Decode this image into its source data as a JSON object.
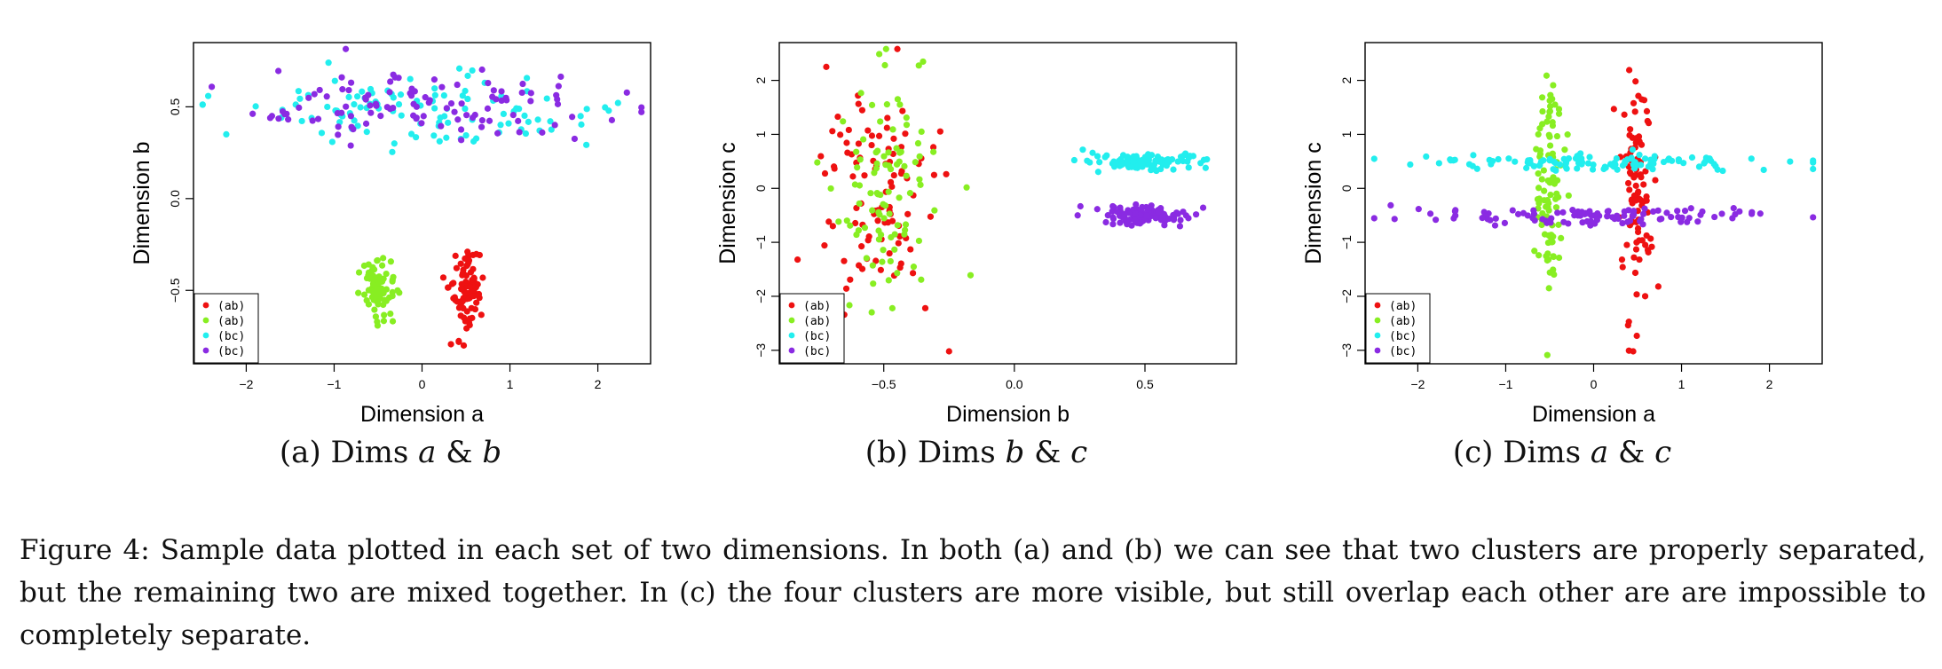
{
  "chart_data": [
    {
      "type": "scatter",
      "id": "a",
      "title": "",
      "xlabel": "Dimension a",
      "ylabel": "Dimension b",
      "xlim": [
        -2.6,
        2.6
      ],
      "ylim": [
        -0.9,
        0.85
      ],
      "xticks": [
        -2,
        -1,
        0,
        1,
        2
      ],
      "xtick_labels": [
        "−2",
        "−1",
        "0",
        "1",
        "2"
      ],
      "yticks": [
        -0.5,
        0.0,
        0.5
      ],
      "ytick_labels": [
        "−0.5",
        "0.0",
        "0.5"
      ],
      "legend_position": "bottom-left",
      "grid": false,
      "series": [
        {
          "name": "(ab)",
          "color": "#ee1111",
          "cluster": {
            "cx": 0.5,
            "cy": -0.52,
            "sx": 0.09,
            "sy": 0.12,
            "n": 90,
            "seed": 11
          }
        },
        {
          "name": "(ab)",
          "color": "#88ee22",
          "cluster": {
            "cx": -0.5,
            "cy": -0.48,
            "sx": 0.09,
            "sy": 0.08,
            "n": 80,
            "seed": 12
          }
        },
        {
          "name": "(bc)",
          "color": "#22eeee",
          "cluster": {
            "cx": 0.0,
            "cy": 0.49,
            "sx": 1.0,
            "sy": 0.1,
            "n": 110,
            "seed": 13
          }
        },
        {
          "name": "(bc)",
          "color": "#8a2be2",
          "cluster": {
            "cx": 0.0,
            "cy": 0.5,
            "sx": 1.05,
            "sy": 0.1,
            "n": 110,
            "seed": 14
          }
        }
      ]
    },
    {
      "type": "scatter",
      "id": "b",
      "title": "",
      "xlabel": "Dimension b",
      "ylabel": "Dimension c",
      "xlim": [
        -0.9,
        0.85
      ],
      "ylim": [
        -3.25,
        2.7
      ],
      "xticks": [
        -0.5,
        0.0,
        0.5
      ],
      "xtick_labels": [
        "−0.5",
        "0.0",
        "0.5"
      ],
      "yticks": [
        -3,
        -2,
        -1,
        0,
        1,
        2
      ],
      "ytick_labels": [
        "−3",
        "−2",
        "−1",
        "0",
        "1",
        "2"
      ],
      "legend_position": "bottom-left",
      "grid": false,
      "series": [
        {
          "name": "(ab)",
          "color": "#ee1111",
          "cluster": {
            "cx": -0.5,
            "cy": 0.0,
            "sx": 0.11,
            "sy": 1.0,
            "n": 95,
            "seed": 21
          }
        },
        {
          "name": "(ab)",
          "color": "#88ee22",
          "cluster": {
            "cx": -0.48,
            "cy": 0.0,
            "sx": 0.1,
            "sy": 1.0,
            "n": 95,
            "seed": 22
          }
        },
        {
          "name": "(bc)",
          "color": "#22eeee",
          "cluster": {
            "cx": 0.5,
            "cy": 0.5,
            "sx": 0.09,
            "sy": 0.08,
            "n": 110,
            "seed": 23
          }
        },
        {
          "name": "(bc)",
          "color": "#8a2be2",
          "cluster": {
            "cx": 0.5,
            "cy": -0.5,
            "sx": 0.09,
            "sy": 0.09,
            "n": 110,
            "seed": 24
          }
        }
      ],
      "extra_points": [
        {
          "x": -0.25,
          "y": -3.02,
          "color": "#ee1111"
        },
        {
          "x": -0.83,
          "y": -1.32,
          "color": "#ee1111"
        },
        {
          "x": -0.72,
          "y": 2.25,
          "color": "#ee1111"
        }
      ]
    },
    {
      "type": "scatter",
      "id": "c",
      "title": "",
      "xlabel": "Dimension a",
      "ylabel": "Dimension c",
      "xlim": [
        -2.6,
        2.6
      ],
      "ylim": [
        -3.25,
        2.7
      ],
      "xticks": [
        -2,
        -1,
        0,
        1,
        2
      ],
      "xtick_labels": [
        "−2",
        "−1",
        "0",
        "1",
        "2"
      ],
      "yticks": [
        -3,
        -2,
        -1,
        0,
        1,
        2
      ],
      "ytick_labels": [
        "−3",
        "−2",
        "−1",
        "0",
        "1",
        "2"
      ],
      "legend_position": "bottom-left",
      "grid": false,
      "series": [
        {
          "name": "(ab)",
          "color": "#ee1111",
          "cluster": {
            "cx": 0.5,
            "cy": 0.0,
            "sx": 0.09,
            "sy": 1.0,
            "n": 95,
            "seed": 31
          }
        },
        {
          "name": "(ab)",
          "color": "#88ee22",
          "cluster": {
            "cx": -0.5,
            "cy": 0.0,
            "sx": 0.09,
            "sy": 1.0,
            "n": 95,
            "seed": 32
          }
        },
        {
          "name": "(bc)",
          "color": "#22eeee",
          "cluster": {
            "cx": 0.0,
            "cy": 0.48,
            "sx": 1.0,
            "sy": 0.08,
            "n": 110,
            "seed": 33
          }
        },
        {
          "name": "(bc)",
          "color": "#8a2be2",
          "cluster": {
            "cx": 0.0,
            "cy": -0.52,
            "sx": 1.0,
            "sy": 0.09,
            "n": 110,
            "seed": 34
          }
        }
      ],
      "extra_points": [
        {
          "x": 0.45,
          "y": -3.02,
          "color": "#ee1111"
        }
      ]
    }
  ],
  "subcaptions": [
    {
      "prefix": "(a) Dims ",
      "v1": "a",
      "amp": " & ",
      "v2": "b"
    },
    {
      "prefix": "(b) Dims ",
      "v1": "b",
      "amp": " & ",
      "v2": "c"
    },
    {
      "prefix": "(c) Dims ",
      "v1": "a",
      "amp": " & ",
      "v2": "c"
    }
  ],
  "caption": "Figure 4: Sample data plotted in each set of two dimensions. In both (a) and (b) we can see that two clusters are properly separated, but the remaining two are mixed together. In (c) the four clusters are more visible, but still overlap each other are are impossible to completely separate."
}
